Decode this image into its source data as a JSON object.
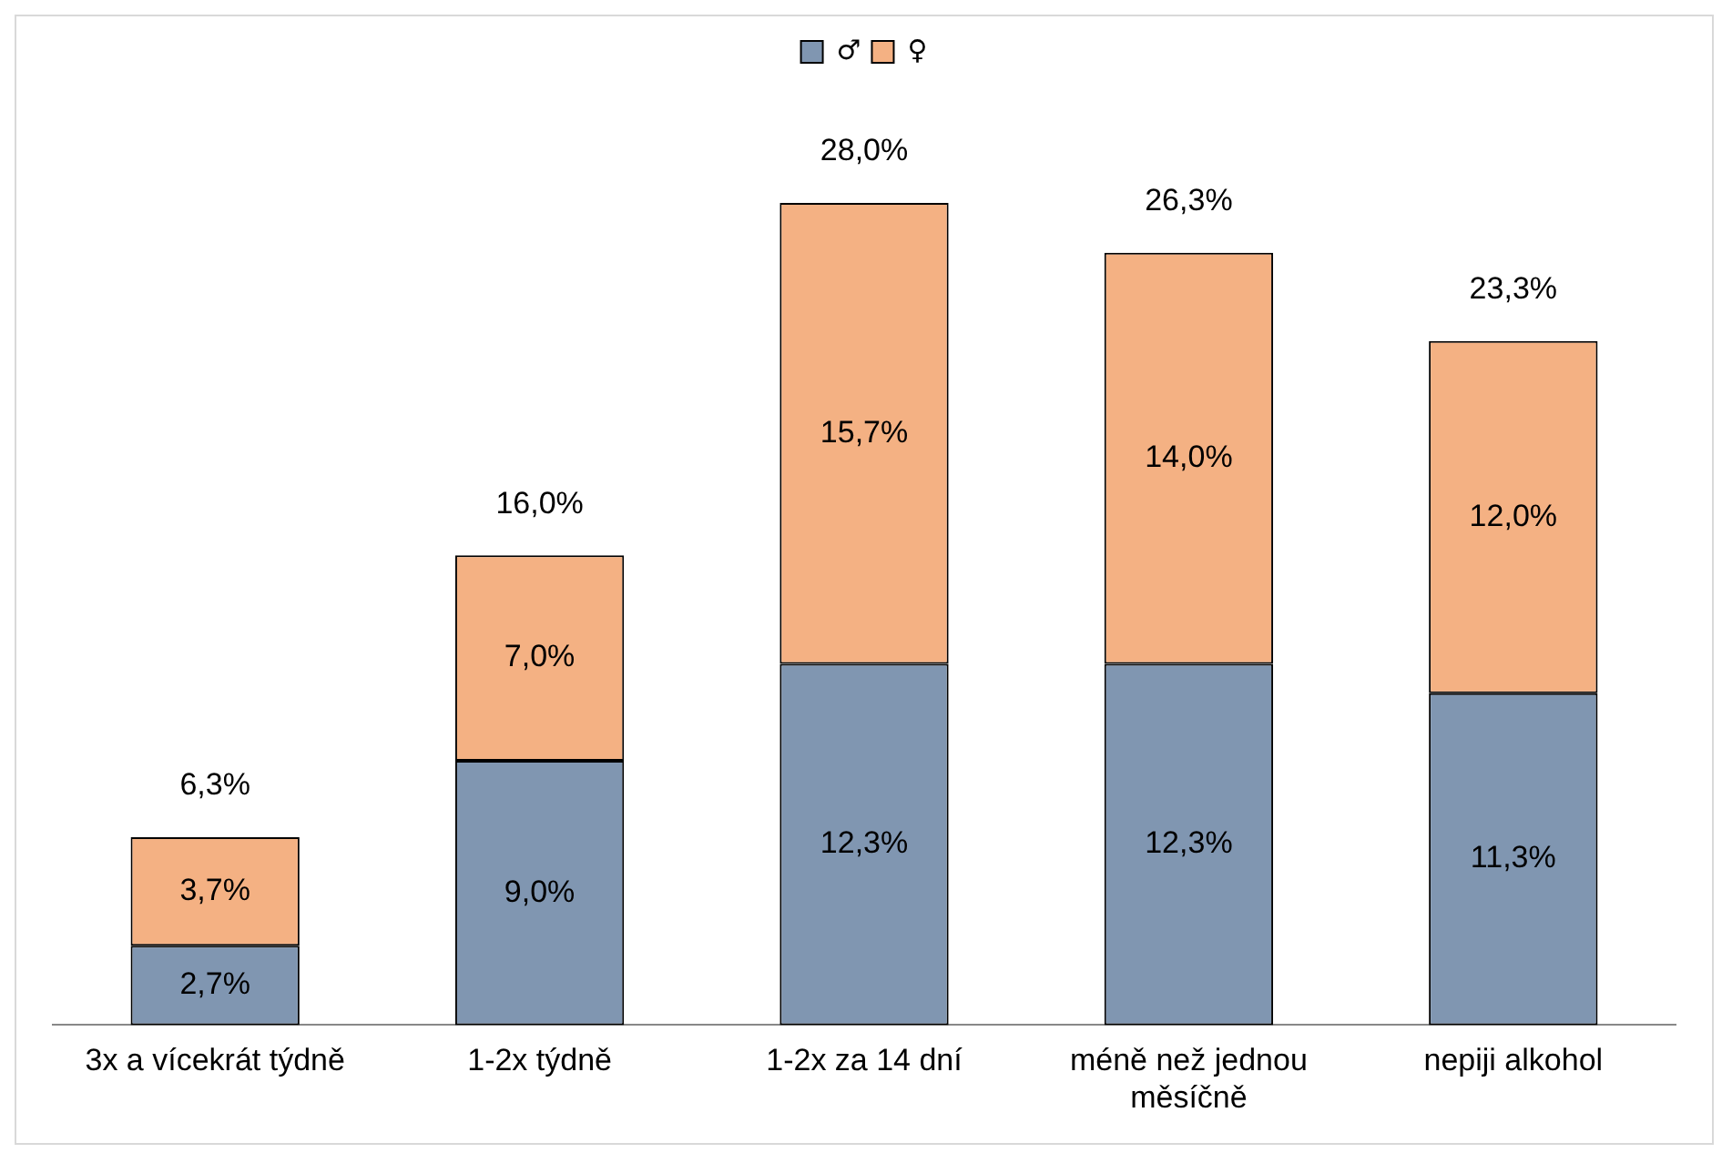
{
  "chart_data": {
    "type": "bar",
    "stacked": true,
    "categories": [
      "3x a vícekrát týdně",
      "1-2x týdně",
      "1-2x za 14 dní",
      "méně než jednou měsíčně",
      "nepiji alkohol"
    ],
    "series": [
      {
        "name": "♂",
        "color": "#8096b1",
        "values": [
          2.7,
          9.0,
          12.3,
          12.3,
          11.3
        ],
        "value_labels": [
          "2,7%",
          "9,0%",
          "12,3%",
          "12,3%",
          "11,3%"
        ]
      },
      {
        "name": "♀",
        "color": "#f4b183",
        "values": [
          3.7,
          7.0,
          15.7,
          14.0,
          12.0
        ],
        "value_labels": [
          "3,7%",
          "7,0%",
          "15,7%",
          "14,0%",
          "12,0%"
        ]
      }
    ],
    "totals": [
      "6,3%",
      "16,0%",
      "28,0%",
      "26,3%",
      "23,3%"
    ],
    "legend": "top",
    "grid": false
  }
}
